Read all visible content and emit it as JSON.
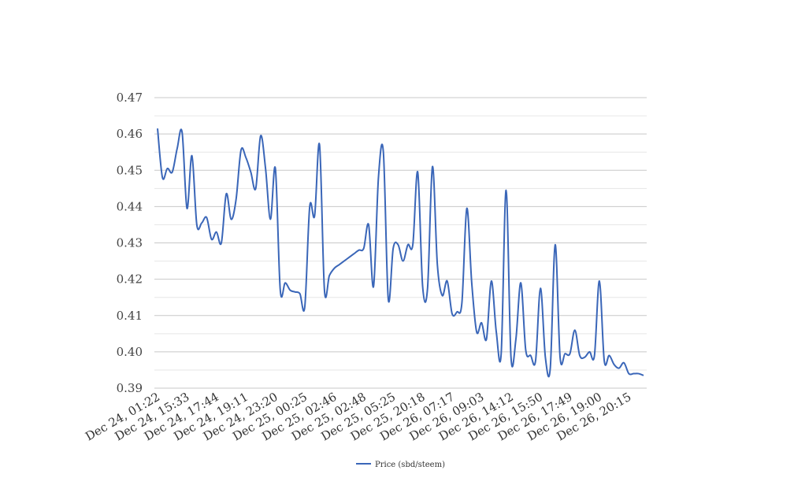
{
  "chart_data": {
    "type": "line",
    "title": "",
    "xlabel": "",
    "ylabel": "",
    "ylim": [
      0.39,
      0.47
    ],
    "yticks": [
      "0.47",
      "0.46",
      "0.45",
      "0.44",
      "0.43",
      "0.42",
      "0.41",
      "0.40",
      "0.39"
    ],
    "minor_grid": true,
    "legend_position": "bottom-center",
    "xtick_labels": [
      "Dec 24, 01:22",
      "Dec 24, 15:33",
      "Dec 24, 17:44",
      "Dec 24, 19:11",
      "Dec 24, 23:20",
      "Dec 25, 00:25",
      "Dec 25, 02:46",
      "Dec 25, 02:48",
      "Dec 25, 05:25",
      "Dec 25, 20:18",
      "Dec 26, 07:17",
      "Dec 26, 09:03",
      "Dec 26, 14:12",
      "Dec 26, 15:50",
      "Dec 26, 17:49",
      "Dec 26, 19:00",
      "Dec 26, 20:15"
    ],
    "series": [
      {
        "name": "Price (sbd/steem)",
        "color": "#3a66b8",
        "values": [
          0.4615,
          0.448,
          0.4505,
          0.4495,
          0.456,
          0.4605,
          0.4395,
          0.454,
          0.435,
          0.4355,
          0.437,
          0.431,
          0.433,
          0.43,
          0.4435,
          0.4365,
          0.442,
          0.4555,
          0.4535,
          0.4495,
          0.445,
          0.4595,
          0.4505,
          0.4365,
          0.4505,
          0.417,
          0.419,
          0.417,
          0.4165,
          0.416,
          0.4125,
          0.44,
          0.4375,
          0.457,
          0.417,
          0.421,
          0.423,
          0.424,
          0.425,
          0.426,
          0.427,
          0.428,
          0.4285,
          0.435,
          0.418,
          0.448,
          0.455,
          0.4145,
          0.4285,
          0.4295,
          0.425,
          0.4295,
          0.4295,
          0.4495,
          0.418,
          0.4175,
          0.451,
          0.424,
          0.4155,
          0.4195,
          0.4105,
          0.411,
          0.4135,
          0.4395,
          0.419,
          0.4055,
          0.408,
          0.4035,
          0.4195,
          0.4055,
          0.3995,
          0.4445,
          0.3985,
          0.4035,
          0.419,
          0.4005,
          0.399,
          0.3975,
          0.4175,
          0.3985,
          0.3955,
          0.4295,
          0.3985,
          0.3995,
          0.3995,
          0.406,
          0.399,
          0.3985,
          0.4,
          0.399,
          0.4195,
          0.3975,
          0.399,
          0.3965,
          0.3955,
          0.397,
          0.394,
          0.394,
          0.394,
          0.3935
        ]
      }
    ]
  }
}
